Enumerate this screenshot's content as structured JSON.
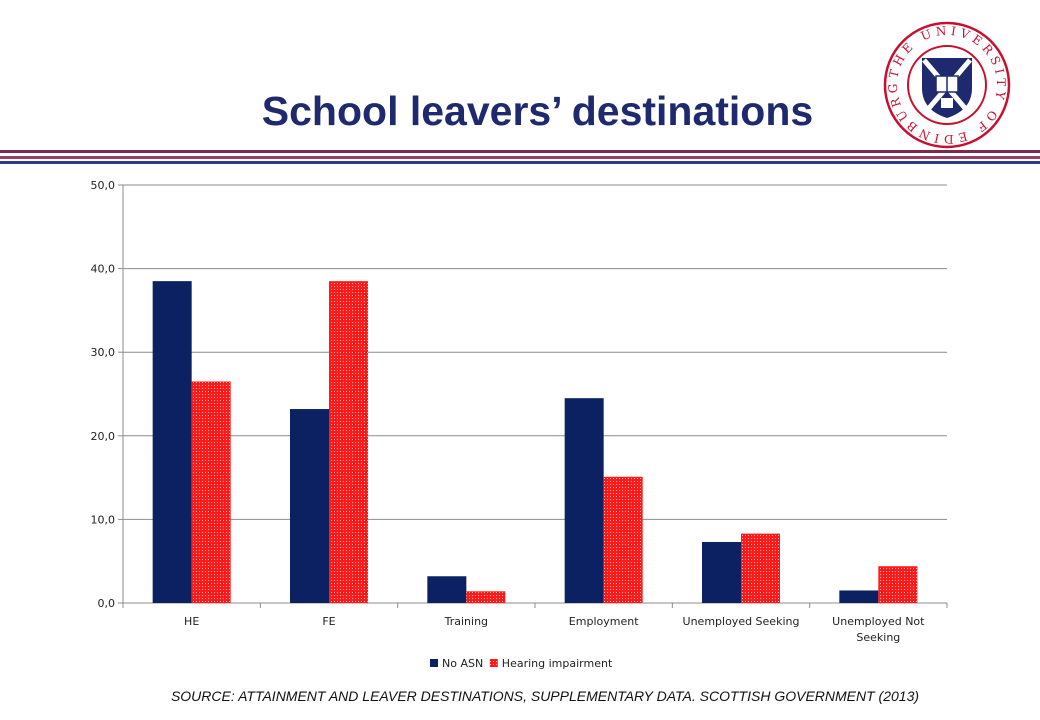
{
  "slide": {
    "title": "School leavers’ destinations",
    "source": "SOURCE: ATTAINMENT AND LEAVER DESTINATIONS, SUPPLEMENTARY DATA. SCOTTISH GOVERNMENT (2013)"
  },
  "logo": {
    "text": "THE UNIVERSITY OF EDINBURGH",
    "ring_color": "#c8102e",
    "shield_color": "#1f2a6e"
  },
  "colors": {
    "title": "#1f2a6e",
    "divider_purple": "#7b2a4f",
    "divider_blue": "#2a3a8c"
  },
  "chart_data": {
    "type": "bar",
    "categories": [
      "HE",
      "FE",
      "Training",
      "Employment",
      "Unemployed Seeking",
      "Unemployed Not Seeking"
    ],
    "series": [
      {
        "name": "No ASN",
        "color": "#0b2161",
        "values": [
          38.5,
          23.2,
          3.2,
          24.5,
          7.3,
          1.5
        ]
      },
      {
        "name": "Hearing impairment",
        "color": "#ff1a1a",
        "values": [
          26.5,
          38.5,
          1.4,
          15.1,
          8.3,
          4.4
        ]
      }
    ],
    "ylim": [
      0,
      50
    ],
    "yticks": [
      "0,0",
      "10,0",
      "20,0",
      "30,0",
      "40,0",
      "50,0"
    ],
    "grid": true,
    "legend": "bottom",
    "title": "",
    "xlabel": "",
    "ylabel": ""
  }
}
